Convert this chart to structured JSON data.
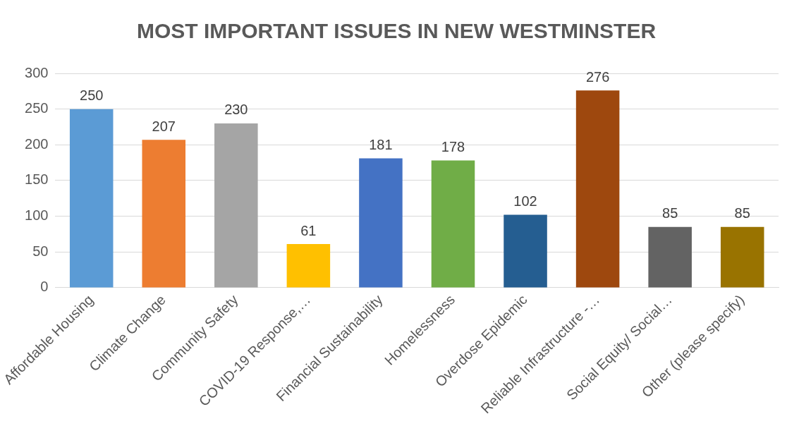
{
  "chart_data": {
    "type": "bar",
    "title": "MOST IMPORTANT ISSUES IN NEW WESTMINSTER",
    "categories": [
      "Affordable Housing",
      "Climate Change",
      "Community Safety",
      "COVID-19 Response,…",
      "Financial Sustainability",
      "Homelessness",
      "Overdose Epidemic",
      "Reliable Infrastructure -…",
      "Social Equity/ Social…",
      "Other (please specify)"
    ],
    "values": [
      250,
      207,
      230,
      61,
      181,
      178,
      102,
      276,
      85,
      85
    ],
    "colors": [
      "#5b9bd5",
      "#ed7d31",
      "#a5a5a5",
      "#ffc000",
      "#4472c4",
      "#70ad47",
      "#255e91",
      "#9e480e",
      "#636363",
      "#997300"
    ],
    "ylim": [
      0,
      300
    ],
    "yticks": [
      0,
      50,
      100,
      150,
      200,
      250,
      300
    ],
    "grid": "y",
    "data_labels": true,
    "legend": false
  }
}
